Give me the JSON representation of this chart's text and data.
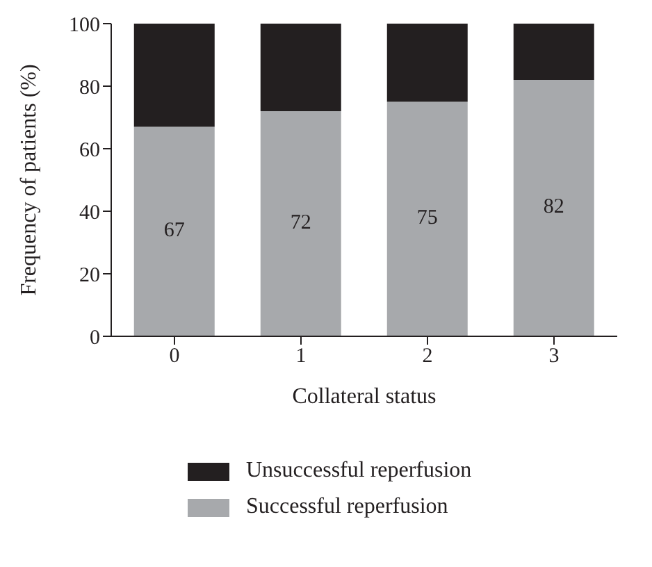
{
  "chart_data": {
    "type": "bar",
    "stacked": true,
    "xlabel": "Collateral status",
    "ylabel": "Frequency of patients (%)",
    "categories": [
      "0",
      "1",
      "2",
      "3"
    ],
    "series": [
      {
        "name": "Successful reperfusion",
        "color": "#a7a9ac",
        "values": [
          67,
          72,
          75,
          82
        ],
        "value_labels": [
          "67",
          "72",
          "75",
          "82"
        ]
      },
      {
        "name": "Unsuccessful reperfusion",
        "color": "#231f20",
        "values": [
          33,
          28,
          25,
          18
        ]
      }
    ],
    "ylim": [
      0,
      100
    ],
    "yticks": [
      0,
      20,
      40,
      60,
      80,
      100
    ],
    "grid": false,
    "legend": "bottom"
  }
}
